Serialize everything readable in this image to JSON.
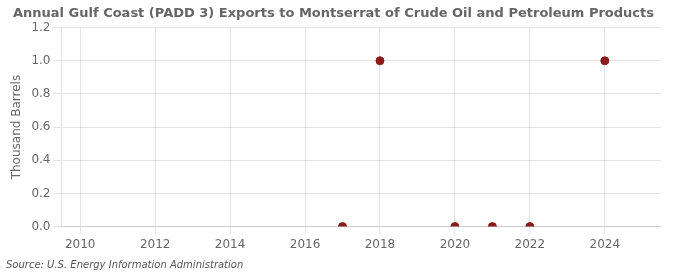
{
  "chart_data": {
    "type": "scatter",
    "title": "Annual Gulf Coast (PADD 3) Exports to Montserrat of Crude Oil and Petroleum Products",
    "ylabel": "Thousand Barrels",
    "annotation": "Source: U.S. Energy Information Administration",
    "x": [
      2017,
      2018,
      2020,
      2021,
      2022,
      2024
    ],
    "values": [
      0.0,
      1.0,
      0.0,
      0.0,
      0.0,
      1.0
    ],
    "color": "#8b1a1a",
    "marker": "circle",
    "xlim": [
      2009.5,
      2025.5
    ],
    "xticks": [
      2010,
      2012,
      2014,
      2016,
      2018,
      2020,
      2022,
      2024
    ],
    "ylim": [
      0.0,
      1.2
    ],
    "yticks": [
      {
        "value": 0.0,
        "label": "0.0"
      },
      0.2,
      0.4,
      0.6,
      0.8,
      {
        "value": 1.0,
        "label": "1.0"
      },
      1.2
    ],
    "grid": true
  }
}
